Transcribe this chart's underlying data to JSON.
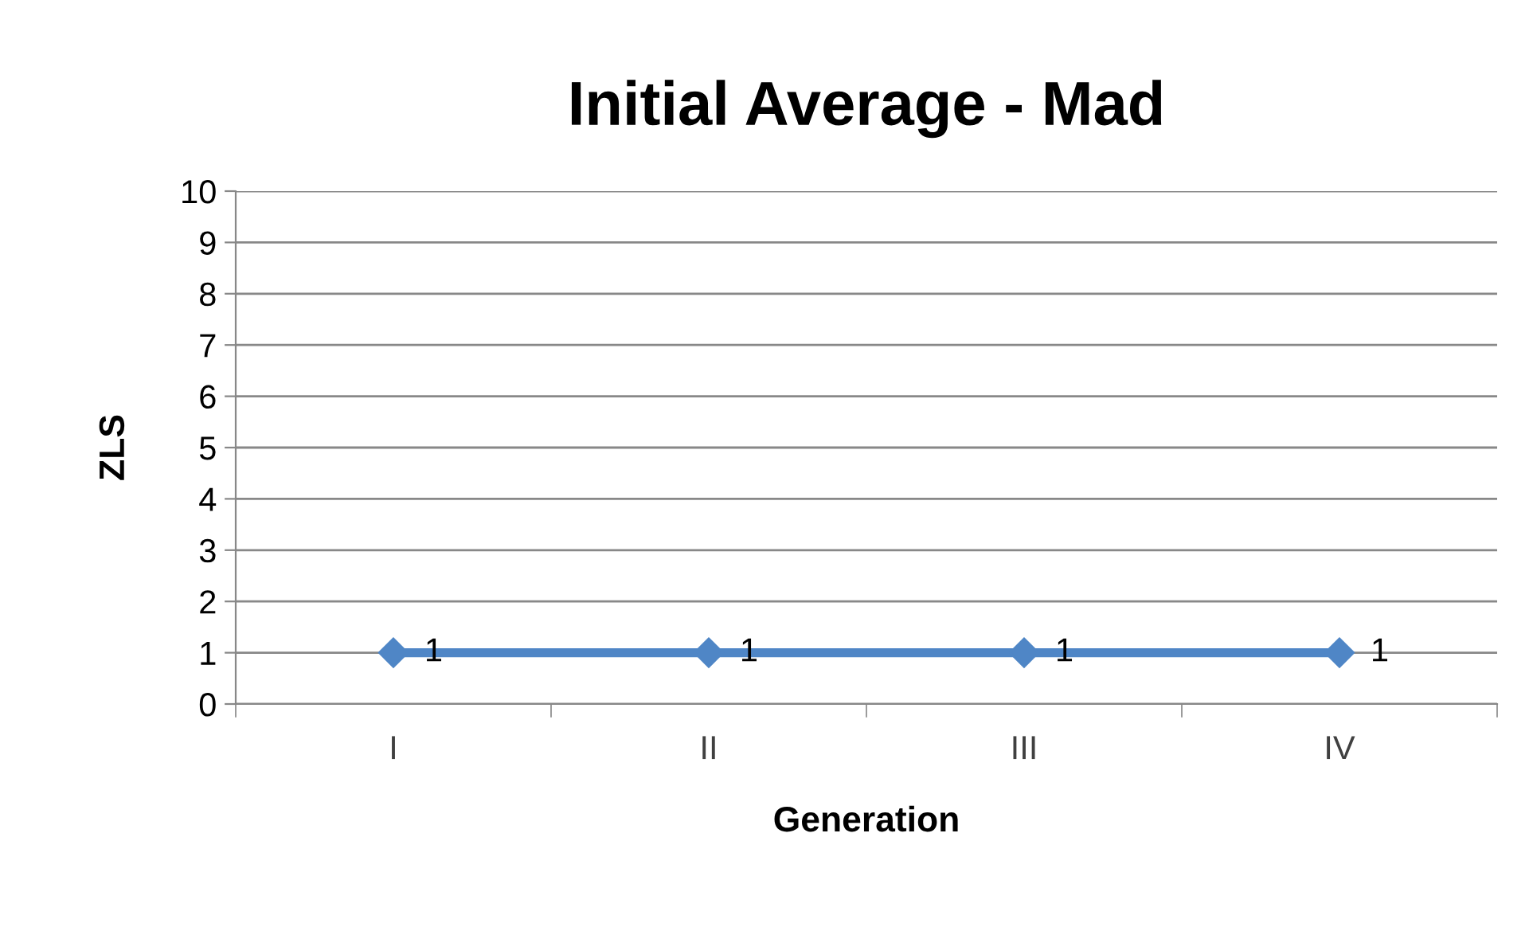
{
  "chart_data": {
    "type": "line",
    "title": "Initial Average - Mad",
    "xlabel": "Generation",
    "ylabel": "ZLS",
    "categories": [
      "I",
      "II",
      "III",
      "IV"
    ],
    "series": [
      {
        "color": "#4f86c6",
        "values": [
          1,
          1,
          1,
          1
        ]
      }
    ],
    "ylim": [
      0,
      10
    ],
    "yticks": [
      0,
      1,
      2,
      3,
      4,
      5,
      6,
      7,
      8,
      9,
      10
    ],
    "grid": "y",
    "marker": "diamond",
    "line_style": "solid",
    "data_labels": true,
    "legend": false
  }
}
